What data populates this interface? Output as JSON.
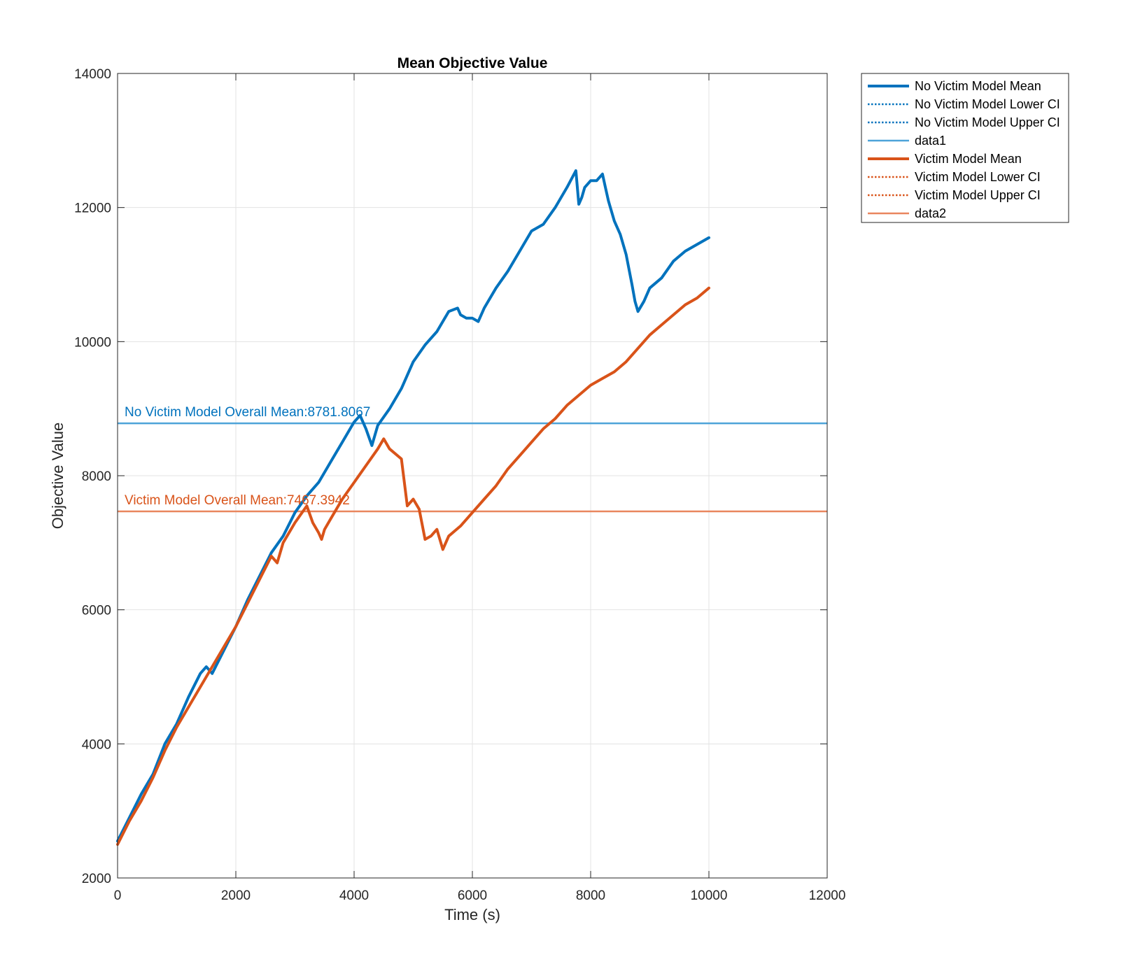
{
  "chart_data": {
    "type": "line",
    "title": "Mean Objective Value",
    "xlabel": "Time (s)",
    "ylabel": "Objective Value",
    "xlim": [
      0,
      12000
    ],
    "ylim": [
      2000,
      14000
    ],
    "xticks": [
      "0",
      "2000",
      "4000",
      "6000",
      "8000",
      "10000",
      "12000"
    ],
    "yticks": [
      "2000",
      "4000",
      "6000",
      "8000",
      "10000",
      "12000",
      "14000"
    ],
    "grid": true,
    "legend_position": "outside-top-right",
    "colors": {
      "blue": "#0072BD",
      "orange": "#D95319",
      "light_blue": "#4DA3D9",
      "light_orange": "#E9865E"
    },
    "legend": [
      {
        "label": "No Victim Model Mean",
        "color": "#0072BD",
        "style": "solid-thick"
      },
      {
        "label": "No Victim Model Lower CI",
        "color": "#0072BD",
        "style": "dotted"
      },
      {
        "label": "No Victim Model Upper CI",
        "color": "#0072BD",
        "style": "dotted"
      },
      {
        "label": "data1",
        "color": "#4DA3D9",
        "style": "solid"
      },
      {
        "label": "Victim Model Mean",
        "color": "#D95319",
        "style": "solid-thick"
      },
      {
        "label": "Victim Model Lower CI",
        "color": "#D95319",
        "style": "dotted"
      },
      {
        "label": "Victim Model Upper CI",
        "color": "#D95319",
        "style": "dotted"
      },
      {
        "label": "data2",
        "color": "#E9865E",
        "style": "solid"
      }
    ],
    "series": [
      {
        "name": "No Victim Model Mean",
        "color": "#0072BD",
        "x": [
          0,
          200,
          400,
          600,
          800,
          1000,
          1200,
          1400,
          1500,
          1600,
          1800,
          2000,
          2200,
          2400,
          2600,
          2800,
          3000,
          3200,
          3400,
          3600,
          3800,
          4000,
          4100,
          4200,
          4300,
          4400,
          4600,
          4800,
          5000,
          5200,
          5400,
          5600,
          5750,
          5800,
          5900,
          6000,
          6100,
          6200,
          6400,
          6600,
          6800,
          7000,
          7200,
          7400,
          7600,
          7750,
          7800,
          7850,
          7900,
          8000,
          8100,
          8200,
          8250,
          8300,
          8400,
          8500,
          8600,
          8700,
          8750,
          8800,
          8900,
          9000,
          9200,
          9400,
          9600,
          9800,
          10000
        ],
        "values": [
          2550,
          2900,
          3250,
          3550,
          4000,
          4300,
          4700,
          5050,
          5150,
          5050,
          5400,
          5750,
          6150,
          6500,
          6850,
          7100,
          7450,
          7700,
          7900,
          8200,
          8500,
          8800,
          8900,
          8700,
          8450,
          8750,
          9000,
          9300,
          9700,
          9950,
          10150,
          10450,
          10500,
          10400,
          10350,
          10350,
          10300,
          10500,
          10800,
          11050,
          11350,
          11650,
          11750,
          12000,
          12300,
          12550,
          12050,
          12150,
          12300,
          12400,
          12400,
          12500,
          12300,
          12100,
          11800,
          11600,
          11300,
          10850,
          10600,
          10450,
          10600,
          10800,
          10950,
          11200,
          11350,
          11450,
          11550
        ]
      },
      {
        "name": "Victim Model Mean",
        "color": "#D95319",
        "x": [
          0,
          200,
          400,
          600,
          800,
          1000,
          1200,
          1400,
          1600,
          1800,
          2000,
          2200,
          2400,
          2600,
          2700,
          2800,
          3000,
          3200,
          3300,
          3400,
          3450,
          3500,
          3600,
          3800,
          4000,
          4200,
          4400,
          4500,
          4600,
          4800,
          4900,
          5000,
          5100,
          5200,
          5300,
          5400,
          5500,
          5600,
          5800,
          6000,
          6200,
          6400,
          6600,
          6800,
          7000,
          7200,
          7400,
          7600,
          7800,
          8000,
          8200,
          8400,
          8600,
          8800,
          9000,
          9200,
          9400,
          9600,
          9800,
          10000
        ],
        "values": [
          2500,
          2850,
          3150,
          3500,
          3900,
          4250,
          4550,
          4850,
          5150,
          5450,
          5750,
          6100,
          6450,
          6800,
          6700,
          7000,
          7300,
          7550,
          7300,
          7150,
          7050,
          7200,
          7350,
          7650,
          7900,
          8150,
          8400,
          8550,
          8400,
          8250,
          7550,
          7650,
          7500,
          7050,
          7100,
          7200,
          6900,
          7100,
          7250,
          7450,
          7650,
          7850,
          8100,
          8300,
          8500,
          8700,
          8850,
          9050,
          9200,
          9350,
          9450,
          9550,
          9700,
          9900,
          10100,
          10250,
          10400,
          10550,
          10650,
          10800
        ]
      }
    ],
    "reference_lines": [
      {
        "name": "data1",
        "y": 8781.8067,
        "color": "#4DA3D9",
        "label": "No Victim Model Overall Mean:8781.8067"
      },
      {
        "name": "data2",
        "y": 7467.3942,
        "color": "#E9865E",
        "label": "Victim Model Overall Mean:7467.3942"
      }
    ]
  }
}
